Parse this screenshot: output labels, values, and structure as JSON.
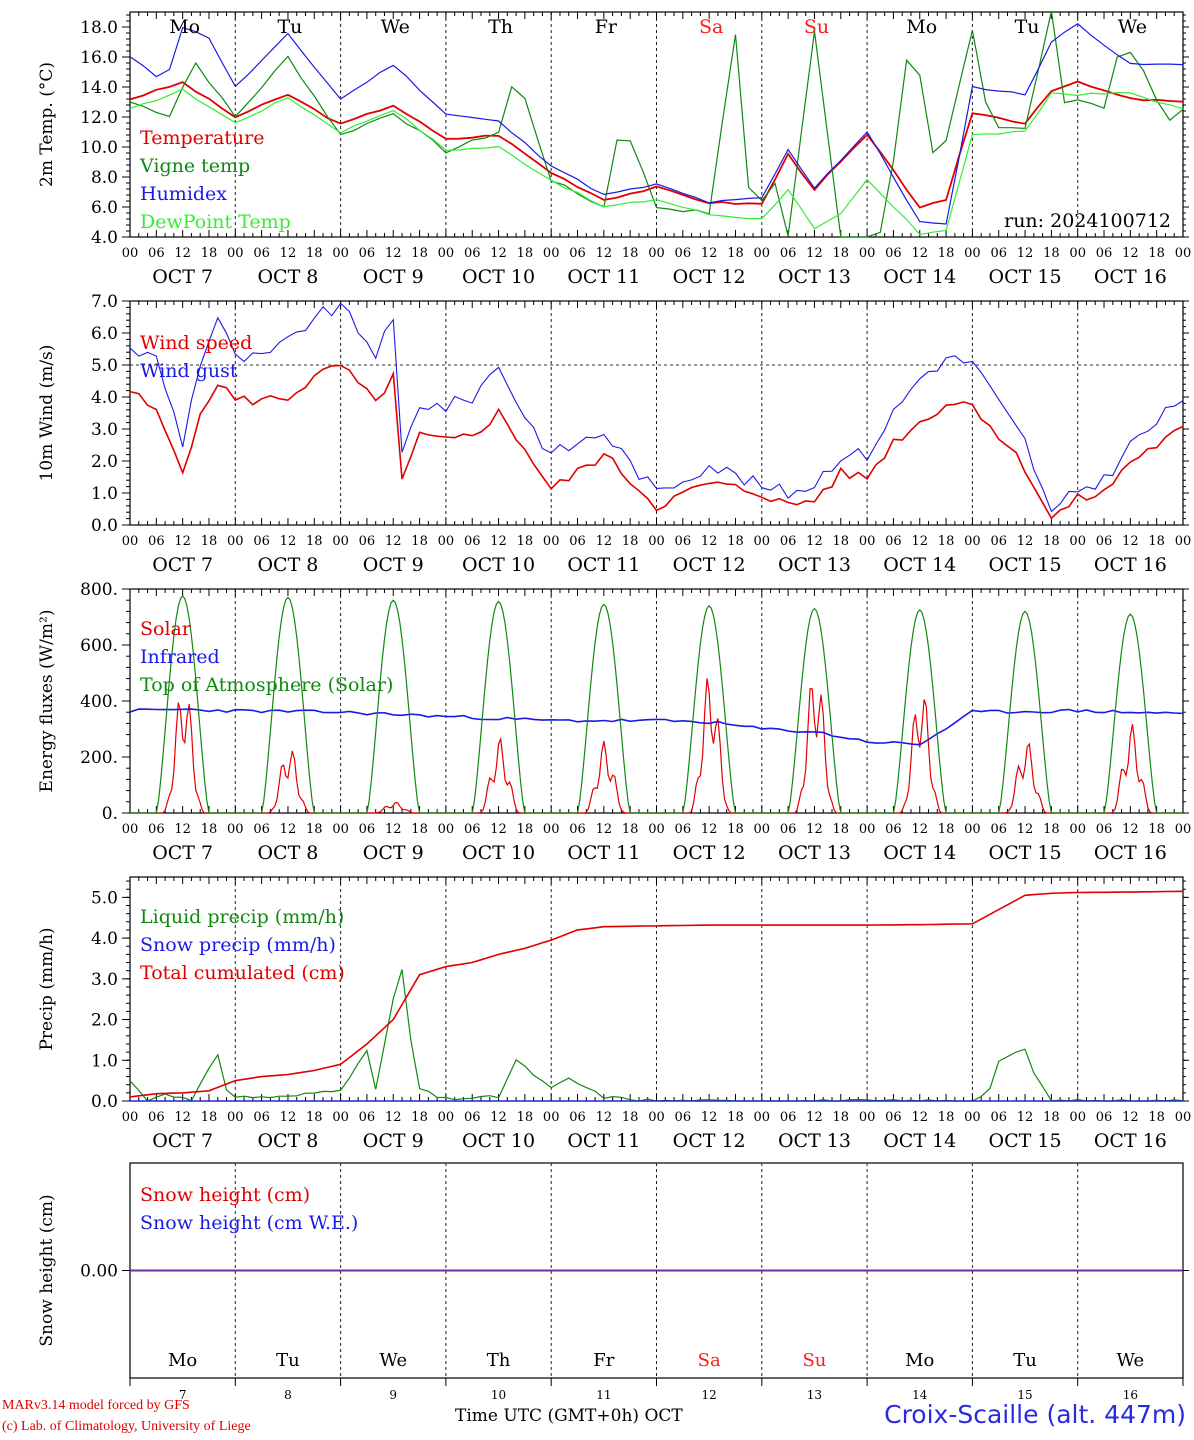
{
  "days": [
    {
      "dow": "Mo",
      "date": "OCT  7",
      "day": "7",
      "weekend": false
    },
    {
      "dow": "Tu",
      "date": "OCT  8",
      "day": "8",
      "weekend": false
    },
    {
      "dow": "We",
      "date": "OCT  9",
      "day": "9",
      "weekend": false
    },
    {
      "dow": "Th",
      "date": "OCT 10",
      "day": "10",
      "weekend": false
    },
    {
      "dow": "Fr",
      "date": "OCT 11",
      "day": "11",
      "weekend": false
    },
    {
      "dow": "Sa",
      "date": "OCT 12",
      "day": "12",
      "weekend": true
    },
    {
      "dow": "Su",
      "date": "OCT 13",
      "day": "13",
      "weekend": true
    },
    {
      "dow": "Mo",
      "date": "OCT 14",
      "day": "14",
      "weekend": false
    },
    {
      "dow": "Tu",
      "date": "OCT 15",
      "day": "15",
      "weekend": false
    },
    {
      "dow": "We",
      "date": "OCT 16",
      "day": "16",
      "weekend": false
    }
  ],
  "hour_labels": [
    "00",
    "06",
    "12",
    "18"
  ],
  "colors": {
    "red": "#e00000",
    "green": "#118811",
    "blue": "#1a1ae6",
    "lightgreen": "#33ee33",
    "purple": "#7a2a9a",
    "weekend": "#ff1a1a"
  },
  "run_label": "run: 2024100712",
  "footer": {
    "credit_line1": "MARv3.14 model forced by GFS",
    "credit_line2": "(c) Lab. of Climatology, University of Liege",
    "xaxis_title": "Time UTC (GMT+0h) OCT",
    "station": "Croix-Scaille (alt. 447m)"
  },
  "chart_data": [
    {
      "type": "line",
      "ylabel": "2m Temp. (°C)",
      "ylim": [
        4,
        19
      ],
      "yticks": [
        "4.0",
        "6.0",
        "8.0",
        "10.0",
        "12.0",
        "14.0",
        "16.0",
        "18.0"
      ],
      "series": [
        {
          "name": "Temperature",
          "color": "#e00000",
          "x": [
            0,
            12,
            24,
            36,
            48,
            60,
            72,
            84,
            96,
            108,
            120,
            132,
            144,
            150,
            156,
            168,
            180,
            186,
            192,
            204,
            210,
            216,
            228,
            240
          ],
          "y": [
            13.2,
            14.3,
            12.0,
            13.5,
            11.5,
            12.8,
            10.5,
            10.8,
            8.3,
            6.5,
            7.3,
            6.3,
            6.2,
            9.5,
            7.2,
            10.8,
            6.0,
            6.4,
            12.3,
            11.6,
            13.8,
            14.3,
            13.2,
            13.0
          ]
        },
        {
          "name": "Vigne temp",
          "color": "#118811",
          "x": [
            0,
            10,
            14,
            24,
            36,
            48,
            60,
            72,
            84,
            88,
            96,
            108,
            112,
            120,
            132,
            138,
            142,
            146,
            150,
            156,
            162,
            166,
            172,
            178,
            184,
            192,
            196,
            200,
            204,
            210,
            212,
            216,
            222,
            226,
            232,
            236,
            240
          ],
          "y": [
            13,
            12,
            16,
            12,
            16,
            10.8,
            12.3,
            9.7,
            11,
            15,
            7.8,
            6.0,
            12,
            6.0,
            5.6,
            17.5,
            4,
            8.8,
            4,
            17.8,
            4,
            3.5,
            4.5,
            18.0,
            8,
            17.8,
            11.3,
            11.3,
            11.3,
            19,
            13,
            13.2,
            12.5,
            17.0,
            14.6,
            11.5,
            12.5
          ]
        },
        {
          "name": "Humidex",
          "color": "#1a1ae6",
          "x": [
            0,
            8,
            12,
            18,
            24,
            36,
            48,
            60,
            72,
            84,
            96,
            108,
            120,
            132,
            144,
            150,
            156,
            168,
            180,
            186,
            192,
            204,
            210,
            216,
            228,
            240
          ],
          "y": [
            16,
            14.3,
            18,
            17.3,
            14.0,
            17.5,
            13.2,
            15.5,
            12.2,
            11.7,
            8.8,
            6.8,
            7.5,
            6.3,
            6.6,
            9.8,
            7.3,
            11.0,
            5.0,
            4.8,
            14.0,
            13.5,
            17.0,
            18.2,
            15.5,
            15.5
          ]
        },
        {
          "name": "DewPoint Temp",
          "color": "#33ee33",
          "x": [
            0,
            12,
            24,
            36,
            48,
            60,
            72,
            84,
            96,
            108,
            120,
            132,
            144,
            150,
            156,
            162,
            168,
            180,
            186,
            192,
            204,
            210,
            216,
            228,
            240
          ],
          "y": [
            12.5,
            13.8,
            11.6,
            13.3,
            11.0,
            12.5,
            9.8,
            10.0,
            7.8,
            6.0,
            6.5,
            5.5,
            5.2,
            7.2,
            4.5,
            5.5,
            7.8,
            4.2,
            4.5,
            10.8,
            11.0,
            13.6,
            13.5,
            13.6,
            12.5
          ]
        }
      ]
    },
    {
      "type": "line",
      "ylabel": "10m Wind (m/s)",
      "ylim": [
        0,
        7
      ],
      "yticks": [
        "0.0",
        "1.0",
        "2.0",
        "3.0",
        "4.0",
        "5.0",
        "6.0",
        "7.0"
      ],
      "reference_line": 5.0,
      "series": [
        {
          "name": "Wind speed",
          "color": "#e00000",
          "x": [
            0,
            6,
            12,
            16,
            20,
            24,
            30,
            36,
            42,
            48,
            56,
            60,
            62,
            66,
            72,
            78,
            84,
            90,
            96,
            108,
            120,
            132,
            144,
            150,
            156,
            162,
            168,
            174,
            180,
            186,
            192,
            198,
            204,
            210,
            216,
            222,
            228,
            234,
            240
          ],
          "y": [
            4.2,
            3.5,
            1.8,
            3.3,
            4.5,
            3.9,
            3.9,
            4.0,
            4.6,
            5.0,
            3.8,
            4.7,
            1.3,
            2.8,
            2.6,
            2.8,
            3.5,
            2.4,
            1.1,
            2.2,
            0.6,
            1.3,
            1.0,
            0.6,
            0.8,
            1.6,
            1.5,
            2.6,
            3.2,
            3.8,
            3.8,
            2.8,
            1.8,
            0.2,
            0.8,
            1.0,
            2.0,
            2.5,
            3.0
          ]
        },
        {
          "name": "Wind gust",
          "color": "#1a1ae6",
          "x": [
            0,
            6,
            12,
            16,
            20,
            24,
            30,
            36,
            42,
            48,
            56,
            60,
            62,
            66,
            72,
            78,
            84,
            90,
            96,
            108,
            120,
            132,
            144,
            150,
            156,
            162,
            168,
            174,
            180,
            186,
            192,
            198,
            204,
            210,
            216,
            222,
            228,
            234,
            240
          ],
          "y": [
            5.5,
            5.2,
            2.6,
            5.1,
            6.5,
            5.2,
            5.2,
            5.7,
            6.5,
            6.8,
            5.4,
            6.3,
            2.2,
            3.8,
            3.7,
            4.0,
            5.0,
            3.4,
            2.2,
            2.9,
            1.0,
            1.9,
            1.2,
            1.0,
            1.3,
            2.2,
            2.2,
            3.5,
            4.6,
            5.2,
            5.1,
            3.8,
            2.6,
            0.3,
            1.1,
            1.4,
            2.5,
            3.2,
            4.0
          ]
        }
      ]
    },
    {
      "type": "line",
      "ylabel": "Energy fluxes (W/m²)",
      "ylim": [
        0,
        800
      ],
      "yticks": [
        "0.",
        "200.",
        "400.",
        "600.",
        "800."
      ],
      "series": [
        {
          "name": "Solar",
          "color": "#e00000",
          "peaks": [
            480,
            245,
            40,
            270,
            260,
            515,
            540,
            470,
            265,
            320
          ]
        },
        {
          "name": "Infrared",
          "color": "#1a1ae6",
          "x": [
            0,
            12,
            24,
            48,
            72,
            96,
            120,
            132,
            144,
            156,
            168,
            180,
            192,
            216,
            240
          ],
          "y": [
            365,
            370,
            365,
            360,
            345,
            330,
            330,
            325,
            300,
            290,
            255,
            245,
            360,
            365,
            355
          ]
        },
        {
          "name": "Top of Atmosphere (Solar)",
          "color": "#118811",
          "peaks": [
            775,
            770,
            760,
            755,
            745,
            740,
            730,
            725,
            720,
            710
          ]
        }
      ]
    },
    {
      "type": "line",
      "ylabel": "Precip (mm/h)",
      "ylim": [
        0,
        5.5
      ],
      "yticks": [
        "0.0",
        "1.0",
        "2.0",
        "3.0",
        "4.0",
        "5.0"
      ],
      "series": [
        {
          "name": "Liquid precip (mm/h)",
          "color": "#118811",
          "x": [
            0,
            4,
            8,
            14,
            20,
            22,
            24,
            36,
            42,
            48,
            54,
            56,
            60,
            62,
            64,
            66,
            70,
            72,
            84,
            88,
            96,
            100,
            108,
            120,
            132,
            144,
            156,
            168,
            180,
            192,
            196,
            198,
            204,
            206,
            210,
            240
          ],
          "y": [
            0.5,
            0,
            0.2,
            0,
            1.15,
            0.3,
            0.1,
            0.1,
            0.2,
            0.3,
            1.2,
            0.3,
            2.5,
            3.2,
            1.5,
            0.3,
            0.1,
            0.05,
            0.1,
            1.0,
            0.3,
            0.55,
            0.1,
            0,
            0,
            0,
            0,
            0,
            0,
            0,
            0.3,
            1.0,
            1.25,
            0.7,
            0,
            0
          ]
        },
        {
          "name": "Snow precip (mm/h)",
          "color": "#1a1ae6",
          "x": [
            0,
            240
          ],
          "y": [
            0,
            0
          ]
        },
        {
          "name": "Total cumulated (cm)",
          "color": "#e00000",
          "x": [
            0,
            6,
            12,
            18,
            24,
            30,
            36,
            42,
            48,
            54,
            60,
            66,
            72,
            78,
            84,
            90,
            96,
            102,
            108,
            120,
            132,
            144,
            156,
            168,
            180,
            192,
            198,
            204,
            210,
            216,
            228,
            240
          ],
          "y": [
            0.1,
            0.18,
            0.2,
            0.25,
            0.5,
            0.6,
            0.65,
            0.75,
            0.9,
            1.4,
            2.0,
            3.1,
            3.3,
            3.4,
            3.6,
            3.75,
            3.95,
            4.2,
            4.28,
            4.3,
            4.32,
            4.32,
            4.32,
            4.32,
            4.33,
            4.35,
            4.7,
            5.05,
            5.1,
            5.12,
            5.13,
            5.15
          ]
        }
      ]
    },
    {
      "type": "line",
      "ylabel": "Snow height (cm)",
      "ylim": [
        -1,
        1
      ],
      "yticks": [
        "0.00"
      ],
      "series": [
        {
          "name": "Snow height (cm)",
          "color": "#e00000",
          "x": [
            0,
            240
          ],
          "y": [
            0,
            0
          ]
        },
        {
          "name": "Snow height (cm W.E.)",
          "color": "#1a1ae6",
          "x": [
            0,
            240
          ],
          "y": [
            0,
            0
          ]
        }
      ]
    }
  ]
}
